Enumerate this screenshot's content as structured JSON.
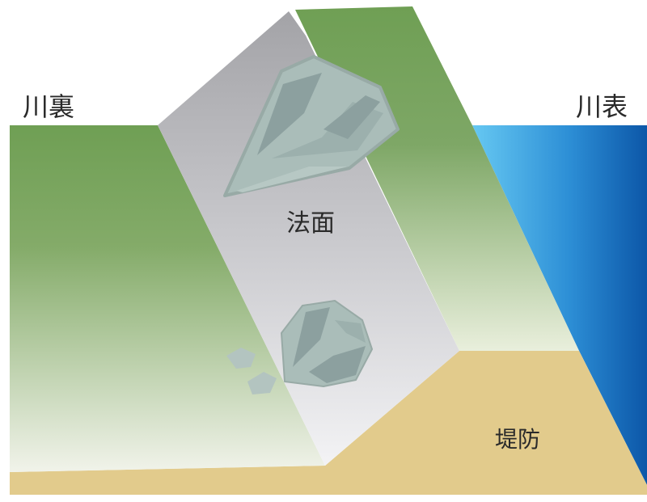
{
  "labels": {
    "riverside_inner": "川裏",
    "riverside_outer": "川表",
    "slope_face": "法面",
    "embankment": "堤防"
  },
  "colors": {
    "grass_top": "#6f9f54",
    "grass_bottom": "#f1f3ea",
    "slope_top": "#a3a3a7",
    "slope_bottom": "#f3f3f5",
    "embankment_fill": "#e2cb8c",
    "water_light": "#66c8f2",
    "water_dark": "#0c57a8",
    "rock_fill": "#aabdb9",
    "rock_facet": "#8ca09f",
    "rock_outline": "#98aaa6"
  }
}
